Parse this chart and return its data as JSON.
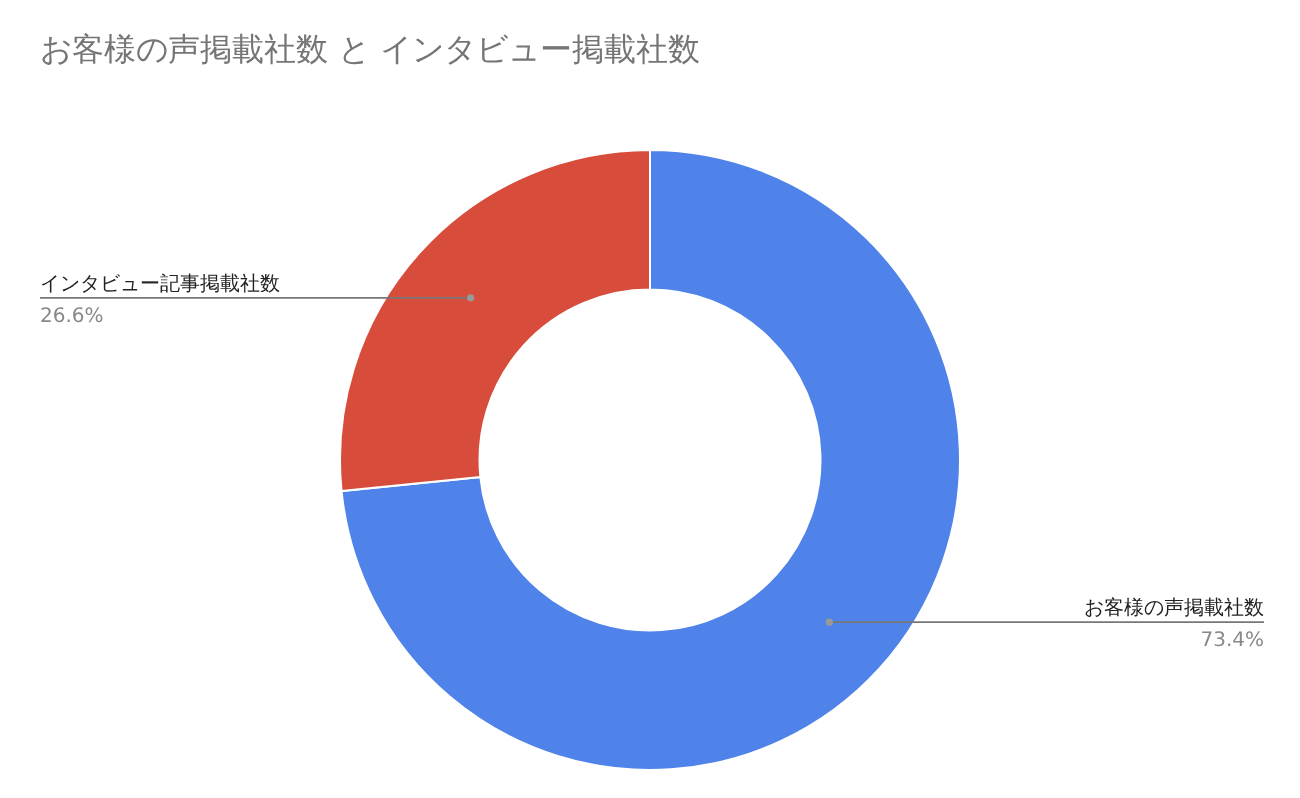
{
  "chart_data": {
    "type": "donut",
    "title": "お客様の声掲載社数 と インタビュー掲載社数",
    "categories": [
      "お客様の声掲載社数",
      "インタビュー記事掲載社数"
    ],
    "values": [
      73.4,
      26.6
    ],
    "colors": [
      "#4f83ea",
      "#d84c3b"
    ],
    "value_labels": [
      "73.4%",
      "26.6%"
    ]
  }
}
